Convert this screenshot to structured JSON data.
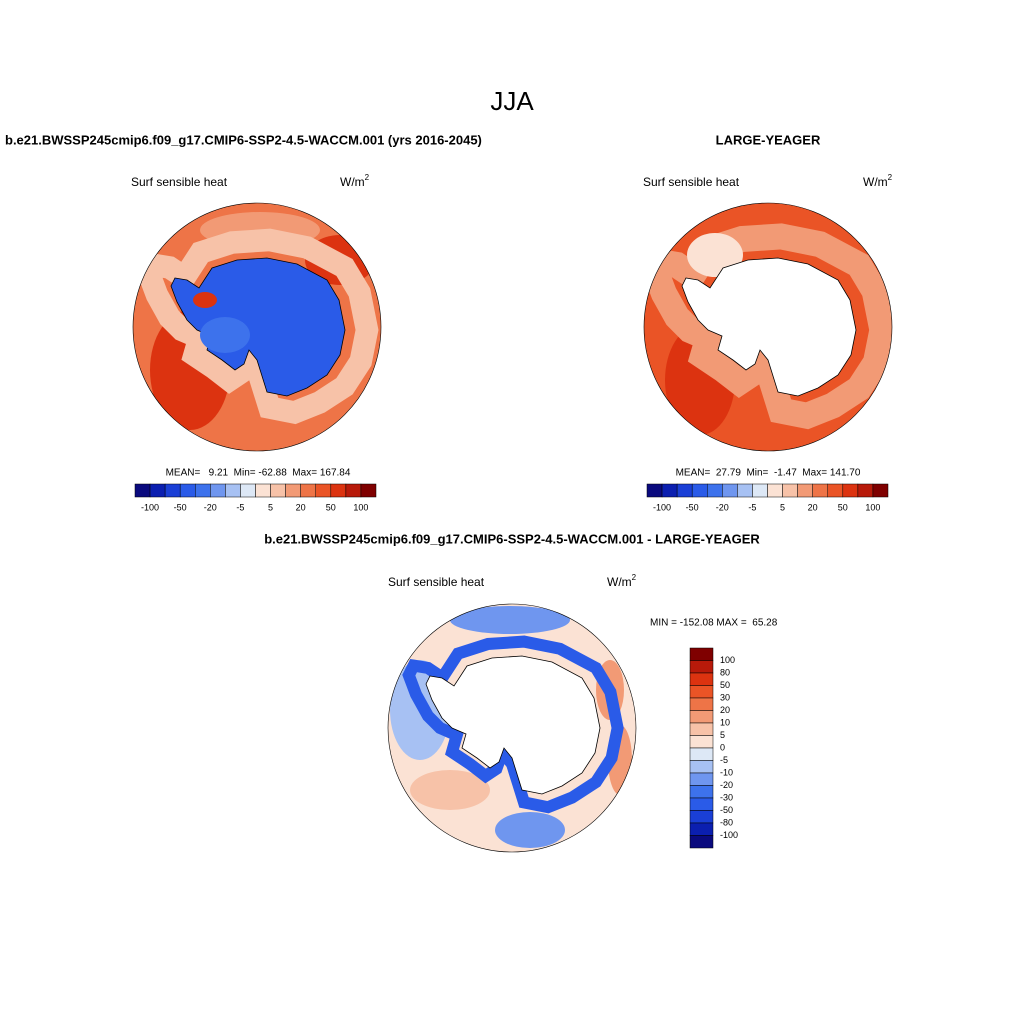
{
  "title": "JJA",
  "panels": [
    {
      "title": "b.e21.BWSSP245cmip6.f09_g17.CMIP6-SSP2-4.5-WACCM.001 (yrs 2016-2045)",
      "field": "Surf sensible heat",
      "units": "W/m",
      "units_exp": "2",
      "stats": "MEAN=   9.21  Min= -62.88  Max= 167.84",
      "colorbar_labels": [
        "-100",
        "-50",
        "-20",
        "-5",
        "5",
        "20",
        "50",
        "100"
      ]
    },
    {
      "title": "LARGE-YEAGER",
      "field": "Surf sensible heat",
      "units": "W/m",
      "units_exp": "2",
      "stats": "MEAN=  27.79  Min=  -1.47  Max= 141.70",
      "colorbar_labels": [
        "-100",
        "-50",
        "-20",
        "-5",
        "5",
        "20",
        "50",
        "100"
      ]
    }
  ],
  "difference": {
    "title": "b.e21.BWSSP245cmip6.f09_g17.CMIP6-SSP2-4.5-WACCM.001 - LARGE-YEAGER",
    "field": "Surf sensible heat",
    "units": "W/m",
    "units_exp": "2",
    "stats": "MIN = -152.08 MAX =  65.28",
    "colorbar_labels": [
      "100",
      "80",
      "50",
      "30",
      "20",
      "10",
      "5",
      "0",
      "-5",
      "-10",
      "-20",
      "-30",
      "-50",
      "-80",
      "-100"
    ]
  },
  "colorbar_colors": [
    "#0a0a7e",
    "#0b1fb0",
    "#1a3fd6",
    "#2a5be8",
    "#3d72ec",
    "#6f96ef",
    "#a7c1f3",
    "#dde8f6",
    "#fbe2d4",
    "#f7c2a8",
    "#f29a75",
    "#ee7447",
    "#ea5426",
    "#dc3310",
    "#b81a0a",
    "#7f0000"
  ]
}
